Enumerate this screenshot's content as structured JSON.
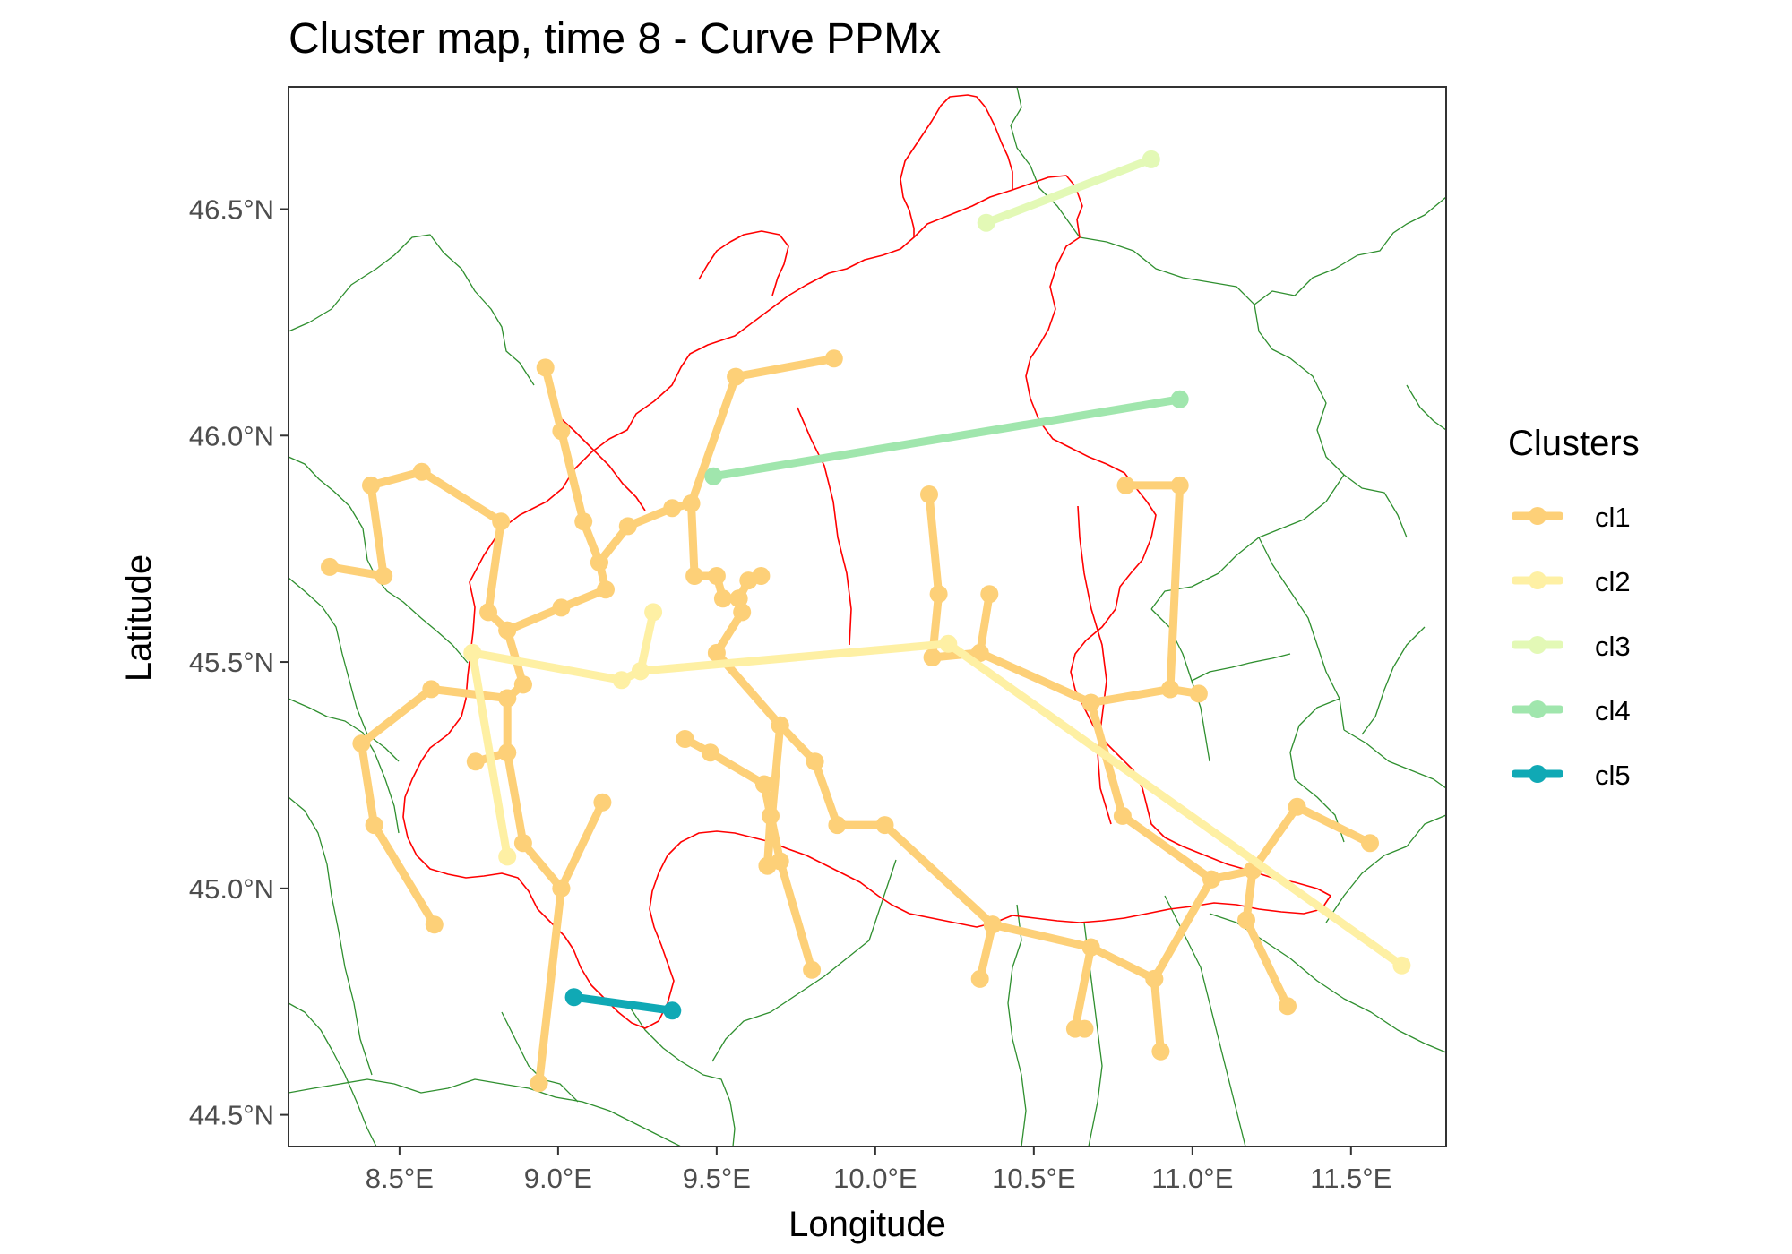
{
  "title": "Cluster map, time 8 - Curve PPMx",
  "colors": {
    "region_border": "#ff0000",
    "province_border": "#2f8f2f",
    "panel_border": "#333333"
  },
  "axes": {
    "x": {
      "label": "Longitude",
      "range": [
        8.15,
        11.8
      ],
      "ticks": [
        {
          "v": 8.5,
          "label": "8.5°E"
        },
        {
          "v": 9.0,
          "label": "9.0°E"
        },
        {
          "v": 9.5,
          "label": "9.5°E"
        },
        {
          "v": 10.0,
          "label": "10.0°E"
        },
        {
          "v": 10.5,
          "label": "10.5°E"
        },
        {
          "v": 11.0,
          "label": "11.0°E"
        },
        {
          "v": 11.5,
          "label": "11.5°E"
        }
      ]
    },
    "y": {
      "label": "Latitude",
      "range": [
        44.43,
        46.77
      ],
      "ticks": [
        {
          "v": 44.5,
          "label": "44.5°N"
        },
        {
          "v": 45.0,
          "label": "45.0°N"
        },
        {
          "v": 45.5,
          "label": "45.5°N"
        },
        {
          "v": 46.0,
          "label": "46.0°N"
        },
        {
          "v": 46.5,
          "label": "46.5°N"
        }
      ]
    }
  },
  "legend": {
    "title": "Clusters",
    "items": [
      {
        "label": "cl1",
        "color": "#fdd078"
      },
      {
        "label": "cl2",
        "color": "#fef0a4"
      },
      {
        "label": "cl3",
        "color": "#e3f9b6"
      },
      {
        "label": "cl4",
        "color": "#a0e6ad"
      },
      {
        "label": "cl5",
        "color": "#10a9b5"
      }
    ]
  },
  "chart_data": {
    "type": "map-network",
    "series": [
      {
        "name": "cl1",
        "color": "#fdd078",
        "paths": [
          [
            [
              8.28,
              45.71
            ],
            [
              8.45,
              45.69
            ],
            [
              8.41,
              45.89
            ],
            [
              8.57,
              45.92
            ],
            [
              8.82,
              45.81
            ],
            [
              8.78,
              45.61
            ],
            [
              8.84,
              45.57
            ],
            [
              9.01,
              45.62
            ],
            [
              9.15,
              45.66
            ],
            [
              9.13,
              45.72
            ],
            [
              9.08,
              45.81
            ],
            [
              9.01,
              46.01
            ],
            [
              8.96,
              46.15
            ]
          ],
          [
            [
              9.13,
              45.72
            ],
            [
              9.22,
              45.8
            ],
            [
              9.36,
              45.84
            ],
            [
              9.42,
              45.85
            ],
            [
              9.56,
              46.13
            ],
            [
              9.87,
              46.17
            ]
          ],
          [
            [
              9.42,
              45.85
            ],
            [
              9.43,
              45.69
            ],
            [
              9.5,
              45.69
            ],
            [
              9.52,
              45.64
            ],
            [
              9.57,
              45.64
            ],
            [
              9.6,
              45.68
            ],
            [
              9.64,
              45.69
            ]
          ],
          [
            [
              9.57,
              45.64
            ],
            [
              9.58,
              45.61
            ],
            [
              9.5,
              45.52
            ],
            [
              9.7,
              45.36
            ],
            [
              9.81,
              45.28
            ],
            [
              9.88,
              45.14
            ],
            [
              10.03,
              45.14
            ],
            [
              10.37,
              44.92
            ],
            [
              10.68,
              44.87
            ],
            [
              10.88,
              44.8
            ],
            [
              11.06,
              45.02
            ],
            [
              11.19,
              45.04
            ],
            [
              11.33,
              45.18
            ],
            [
              11.56,
              45.1
            ]
          ],
          [
            [
              10.68,
              44.87
            ],
            [
              10.63,
              44.69
            ],
            [
              10.66,
              44.69
            ]
          ],
          [
            [
              10.88,
              44.8
            ],
            [
              10.9,
              44.64
            ]
          ],
          [
            [
              10.37,
              44.92
            ],
            [
              10.33,
              44.8
            ]
          ],
          [
            [
              11.19,
              45.04
            ],
            [
              11.17,
              44.93
            ],
            [
              11.3,
              44.74
            ]
          ],
          [
            [
              9.7,
              45.36
            ],
            [
              9.66,
              45.05
            ]
          ],
          [
            [
              9.66,
              45.05
            ],
            [
              9.67,
              45.16
            ],
            [
              9.65,
              45.23
            ],
            [
              9.48,
              45.3
            ],
            [
              9.4,
              45.33
            ]
          ],
          [
            [
              9.65,
              45.23
            ],
            [
              9.7,
              45.06
            ],
            [
              9.8,
              44.82
            ]
          ],
          [
            [
              10.17,
              45.87
            ],
            [
              10.2,
              45.65
            ],
            [
              10.18,
              45.51
            ],
            [
              10.33,
              45.52
            ],
            [
              10.36,
              45.65
            ]
          ],
          [
            [
              10.33,
              45.52
            ],
            [
              10.68,
              45.41
            ],
            [
              10.93,
              45.44
            ],
            [
              10.96,
              45.89
            ],
            [
              10.79,
              45.89
            ]
          ],
          [
            [
              10.93,
              45.44
            ],
            [
              11.02,
              45.43
            ]
          ],
          [
            [
              10.68,
              45.41
            ],
            [
              10.78,
              45.16
            ],
            [
              11.06,
              45.02
            ]
          ],
          [
            [
              8.89,
              45.45
            ],
            [
              8.84,
              45.57
            ]
          ],
          [
            [
              8.89,
              45.45
            ],
            [
              8.84,
              45.42
            ],
            [
              8.6,
              45.44
            ],
            [
              8.38,
              45.32
            ],
            [
              8.42,
              45.14
            ],
            [
              8.61,
              44.92
            ]
          ],
          [
            [
              8.84,
              45.42
            ],
            [
              8.84,
              45.3
            ],
            [
              8.89,
              45.1
            ],
            [
              9.01,
              45.0
            ],
            [
              9.14,
              45.19
            ]
          ],
          [
            [
              9.01,
              45.0
            ],
            [
              8.94,
              44.57
            ]
          ],
          [
            [
              8.84,
              45.3
            ],
            [
              8.74,
              45.28
            ]
          ]
        ]
      },
      {
        "name": "cl2",
        "color": "#fef0a4",
        "paths": [
          [
            [
              8.73,
              45.52
            ],
            [
              8.84,
              45.07
            ]
          ],
          [
            [
              8.73,
              45.52
            ],
            [
              9.2,
              45.46
            ],
            [
              9.26,
              45.48
            ],
            [
              10.23,
              45.54
            ],
            [
              11.66,
              44.83
            ]
          ],
          [
            [
              9.26,
              45.48
            ],
            [
              9.3,
              45.61
            ]
          ]
        ]
      },
      {
        "name": "cl3",
        "color": "#e3f9b6",
        "paths": [
          [
            [
              10.35,
              46.47
            ],
            [
              10.87,
              46.61
            ]
          ]
        ]
      },
      {
        "name": "cl4",
        "color": "#a0e6ad",
        "paths": [
          [
            [
              9.49,
              45.91
            ],
            [
              10.96,
              46.08
            ]
          ]
        ]
      },
      {
        "name": "cl5",
        "color": "#10a9b5",
        "paths": [
          [
            [
              9.05,
              44.76
            ],
            [
              9.36,
              44.73
            ]
          ]
        ]
      }
    ]
  }
}
